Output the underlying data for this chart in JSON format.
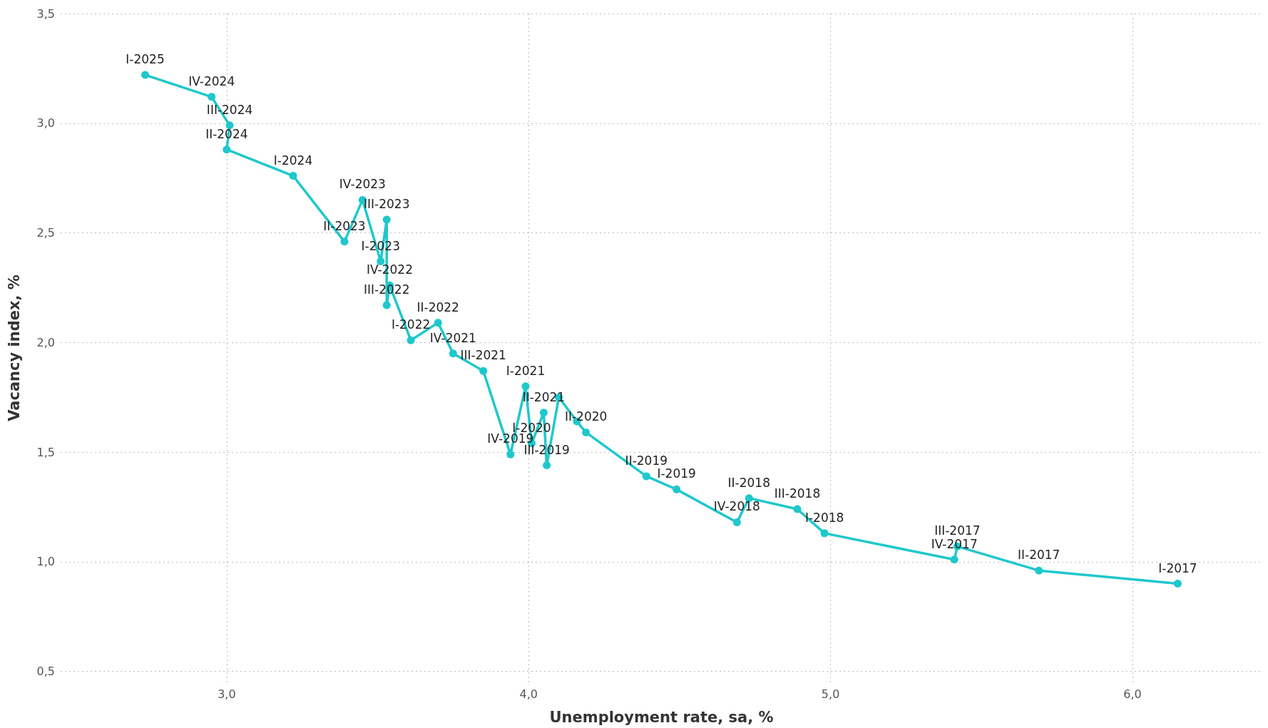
{
  "chart_data": {
    "type": "line",
    "xlabel": "Unemployment rate, sa, %",
    "ylabel": "Vacancy index, %",
    "xlim": [
      2.45,
      6.43
    ],
    "ylim": [
      0.45,
      3.5
    ],
    "xticks": [
      {
        "value": 3,
        "label": "3,0"
      },
      {
        "value": 4,
        "label": "4,0"
      },
      {
        "value": 5,
        "label": "5,0"
      },
      {
        "value": 6,
        "label": "6,0"
      }
    ],
    "yticks": [
      {
        "value": 0.5,
        "label": "0,5"
      },
      {
        "value": 1,
        "label": "1,0"
      },
      {
        "value": 1.5,
        "label": "1,5"
      },
      {
        "value": 2,
        "label": "2,0"
      },
      {
        "value": 2.5,
        "label": "2,5"
      },
      {
        "value": 3,
        "label": "3,0"
      },
      {
        "value": 3.5,
        "label": "3,5"
      }
    ],
    "grid": true,
    "marker": "circle",
    "line_style": "solid",
    "series": [
      {
        "color": "#1ec8cc",
        "x": [
          6.15,
          5.69,
          5.42,
          5.41,
          4.98,
          4.89,
          4.73,
          4.69,
          4.49,
          4.39,
          4.19,
          4.16,
          4.1,
          4.06,
          4.05,
          4.01,
          3.99,
          3.94,
          3.85,
          3.75,
          3.7,
          3.61,
          3.54,
          3.53,
          3.53,
          3.51,
          3.45,
          3.39,
          3.22,
          3.0,
          3.01,
          2.95,
          2.73
        ],
        "values": [
          0.9,
          0.96,
          1.07,
          1.01,
          1.13,
          1.24,
          1.29,
          1.18,
          1.33,
          1.39,
          1.59,
          1.64,
          1.75,
          1.44,
          1.68,
          1.54,
          1.8,
          1.49,
          1.87,
          1.95,
          2.09,
          2.01,
          2.26,
          2.17,
          2.56,
          2.37,
          2.65,
          2.46,
          2.76,
          2.88,
          2.99,
          3.12,
          3.22
        ],
        "value_labels": [
          "I-2017",
          "II-2017",
          "III-2017",
          "IV-2017",
          "I-2018",
          "III-2018",
          "II-2018",
          "IV-2018",
          "I-2019",
          "II-2019",
          "II-2020",
          null,
          null,
          "III-2019",
          "II-2021",
          "I-2020",
          "I-2021",
          "IV-2019",
          "III-2021",
          "IV-2021",
          "II-2022",
          "I-2022",
          "IV-2022",
          "III-2022",
          "III-2023",
          "I-2023",
          "IV-2023",
          "II-2023",
          "I-2024",
          "II-2024",
          "III-2024",
          "IV-2024",
          "I-2025"
        ]
      }
    ]
  }
}
